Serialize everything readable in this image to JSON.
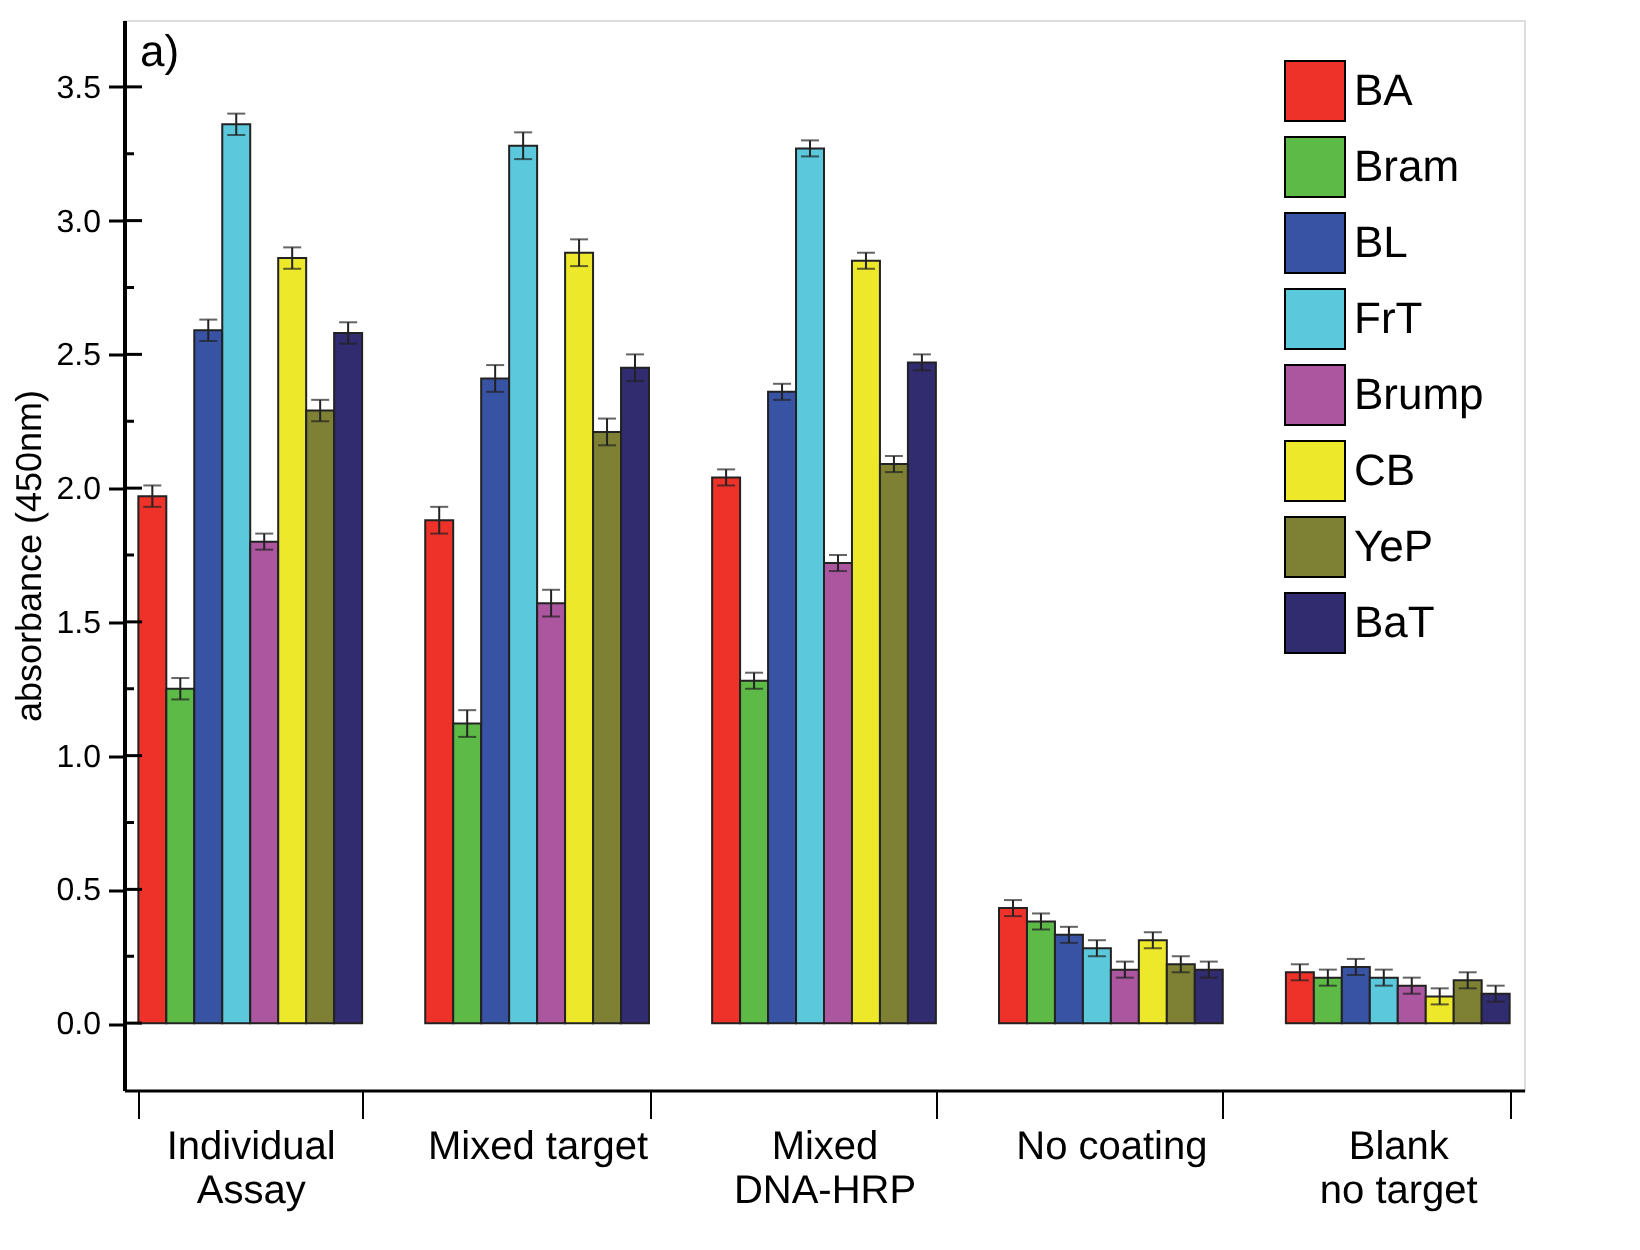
{
  "chart_data": {
    "type": "bar",
    "categories": [
      "Individual\nAssay",
      "Mixed target",
      "Mixed\nDNA-HRP",
      "No coating",
      "Blank\nno target"
    ],
    "ylabel": "absorbance (450nm)",
    "annotations": [
      "a)"
    ],
    "ylim": [
      -0.25,
      3.75
    ],
    "yticks": [
      {
        "value": 0,
        "label": "0.0"
      },
      {
        "value": 0.25,
        "label": null
      },
      {
        "value": 0.5,
        "label": "0.5"
      },
      {
        "value": 0.75,
        "label": null
      },
      {
        "value": 1,
        "label": "1.0"
      },
      {
        "value": 1.25,
        "label": null
      },
      {
        "value": 1.5,
        "label": "1.5"
      },
      {
        "value": 1.75,
        "label": null
      },
      {
        "value": 2,
        "label": "2.0"
      },
      {
        "value": 2.25,
        "label": null
      },
      {
        "value": 2.5,
        "label": "2.5"
      },
      {
        "value": 2.75,
        "label": null
      },
      {
        "value": 3,
        "label": "3.0"
      },
      {
        "value": 3.25,
        "label": null
      },
      {
        "value": 3.5,
        "label": "3.5"
      }
    ],
    "legend": "top right",
    "grid": false,
    "series": [
      {
        "name": "BA",
        "color": "#ee3129",
        "values": [
          1.97,
          1.88,
          2.04,
          0.43,
          0.19
        ],
        "errors": [
          0.04,
          0.05,
          0.03,
          0.03,
          0.03
        ]
      },
      {
        "name": "Bram",
        "color": "#5dba47",
        "values": [
          1.25,
          1.12,
          1.28,
          0.38,
          0.17
        ],
        "errors": [
          0.04,
          0.05,
          0.03,
          0.03,
          0.03
        ]
      },
      {
        "name": "BL",
        "color": "#3953a4",
        "values": [
          2.59,
          2.41,
          2.36,
          0.33,
          0.21
        ],
        "errors": [
          0.04,
          0.05,
          0.03,
          0.03,
          0.03
        ]
      },
      {
        "name": "FrT",
        "color": "#5bc8dc",
        "values": [
          3.36,
          3.28,
          3.27,
          0.28,
          0.17
        ],
        "errors": [
          0.04,
          0.05,
          0.03,
          0.03,
          0.03
        ]
      },
      {
        "name": "Brump",
        "color": "#ab569f",
        "values": [
          1.8,
          1.57,
          1.72,
          0.2,
          0.14
        ],
        "errors": [
          0.03,
          0.05,
          0.03,
          0.03,
          0.03
        ]
      },
      {
        "name": "CB",
        "color": "#eee82b",
        "values": [
          2.86,
          2.88,
          2.85,
          0.31,
          0.1
        ],
        "errors": [
          0.04,
          0.05,
          0.03,
          0.03,
          0.03
        ]
      },
      {
        "name": "YeP",
        "color": "#7e8034",
        "values": [
          2.29,
          2.21,
          2.09,
          0.22,
          0.16
        ],
        "errors": [
          0.04,
          0.05,
          0.03,
          0.03,
          0.03
        ]
      },
      {
        "name": "BaT",
        "color": "#312b70",
        "values": [
          2.58,
          2.45,
          2.47,
          0.2,
          0.11
        ],
        "errors": [
          0.04,
          0.05,
          0.03,
          0.03,
          0.03
        ]
      }
    ]
  }
}
